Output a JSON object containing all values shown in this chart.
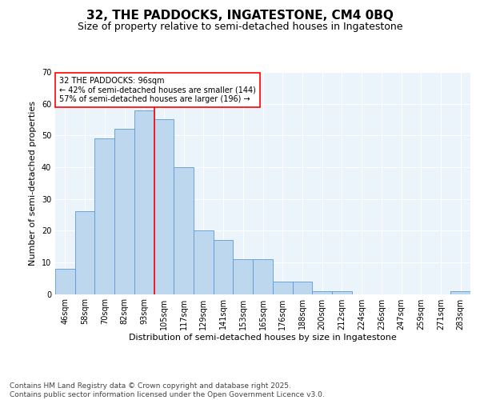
{
  "title": "32, THE PADDOCKS, INGATESTONE, CM4 0BQ",
  "subtitle": "Size of property relative to semi-detached houses in Ingatestone",
  "xlabel": "Distribution of semi-detached houses by size in Ingatestone",
  "ylabel": "Number of semi-detached properties",
  "categories": [
    "46sqm",
    "58sqm",
    "70sqm",
    "82sqm",
    "93sqm",
    "105sqm",
    "117sqm",
    "129sqm",
    "141sqm",
    "153sqm",
    "165sqm",
    "176sqm",
    "188sqm",
    "200sqm",
    "212sqm",
    "224sqm",
    "236sqm",
    "247sqm",
    "259sqm",
    "271sqm",
    "283sqm"
  ],
  "values": [
    8,
    26,
    49,
    52,
    58,
    55,
    40,
    20,
    17,
    11,
    11,
    4,
    4,
    1,
    1,
    0,
    0,
    0,
    0,
    0,
    1
  ],
  "bar_color": "#BDD7EE",
  "bar_edge_color": "#5B9BD5",
  "property_line_x": 4,
  "annotation_text": "32 THE PADDOCKS: 96sqm\n← 42% of semi-detached houses are smaller (144)\n57% of semi-detached houses are larger (196) →",
  "ylim": [
    0,
    70
  ],
  "yticks": [
    0,
    10,
    20,
    30,
    40,
    50,
    60,
    70
  ],
  "footer": "Contains HM Land Registry data © Crown copyright and database right 2025.\nContains public sector information licensed under the Open Government Licence v3.0.",
  "background_color": "#EBF3FB",
  "title_fontsize": 11,
  "subtitle_fontsize": 9,
  "label_fontsize": 8,
  "tick_fontsize": 7,
  "footer_fontsize": 6.5
}
